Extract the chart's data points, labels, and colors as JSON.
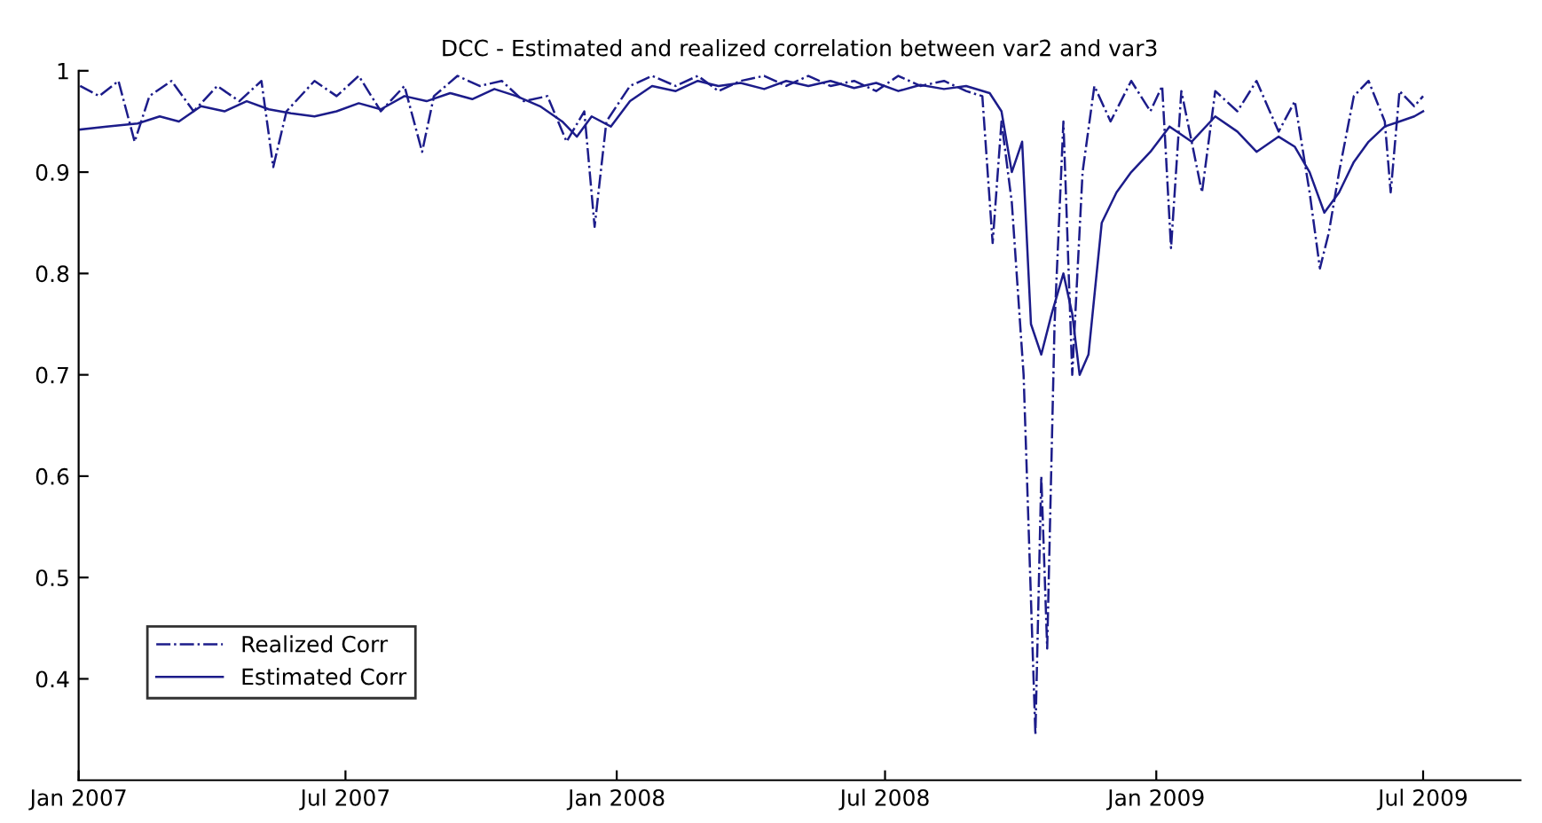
{
  "chart_data": {
    "type": "line",
    "title": "DCC - Estimated and realized correlation between var2 and var3",
    "xlim": [
      "2007-01-01",
      "2009-09-05"
    ],
    "xticks": [
      {
        "value": "2007-01-01",
        "label": "Jan 2007"
      },
      {
        "value": "2007-07-01",
        "label": "Jul 2007"
      },
      {
        "value": "2008-01-01",
        "label": "Jan 2008"
      },
      {
        "value": "2008-07-01",
        "label": "Jul 2008"
      },
      {
        "value": "2009-01-01",
        "label": "Jan 2009"
      },
      {
        "value": "2009-07-01",
        "label": "Jul 2009"
      }
    ],
    "ylim": [
      0.3,
      1
    ],
    "yticks": [
      0.4,
      0.5,
      0.6,
      0.7,
      0.8,
      0.9,
      1
    ],
    "grid": false,
    "legend": "bottom left",
    "marker": "none",
    "series": [
      {
        "name": "Realized Corr",
        "color": "#1c1c8a",
        "line_style": "dashdot",
        "x": [
          "2007-01-02",
          "2007-01-15",
          "2007-01-28",
          "2007-02-08",
          "2007-02-18",
          "2007-03-05",
          "2007-03-20",
          "2007-04-05",
          "2007-04-20",
          "2007-05-05",
          "2007-05-13",
          "2007-05-22",
          "2007-06-10",
          "2007-06-25",
          "2007-07-10",
          "2007-07-25",
          "2007-08-10",
          "2007-08-22",
          "2007-08-30",
          "2007-09-15",
          "2007-09-30",
          "2007-10-15",
          "2007-10-30",
          "2007-11-15",
          "2007-11-28",
          "2007-12-10",
          "2007-12-17",
          "2007-12-25",
          "2008-01-10",
          "2008-01-25",
          "2008-02-10",
          "2008-02-25",
          "2008-03-10",
          "2008-03-25",
          "2008-04-10",
          "2008-04-25",
          "2008-05-10",
          "2008-05-25",
          "2008-06-10",
          "2008-06-25",
          "2008-07-10",
          "2008-07-25",
          "2008-08-10",
          "2008-08-25",
          "2008-09-05",
          "2008-09-12",
          "2008-09-18",
          "2008-09-25",
          "2008-10-03",
          "2008-10-11",
          "2008-10-15",
          "2008-10-19",
          "2008-10-24",
          "2008-10-30",
          "2008-11-05",
          "2008-11-12",
          "2008-11-20",
          "2008-12-01",
          "2008-12-15",
          "2008-12-28",
          "2009-01-05",
          "2009-01-11",
          "2009-01-18",
          "2009-02-01",
          "2009-02-10",
          "2009-02-25",
          "2009-03-10",
          "2009-03-25",
          "2009-04-05",
          "2009-04-15",
          "2009-04-22",
          "2009-04-28",
          "2009-05-05",
          "2009-05-15",
          "2009-05-25",
          "2009-06-05",
          "2009-06-09",
          "2009-06-15",
          "2009-06-25",
          "2009-07-01"
        ],
        "values": [
          0.985,
          0.975,
          0.99,
          0.93,
          0.975,
          0.99,
          0.96,
          0.985,
          0.97,
          0.99,
          0.905,
          0.96,
          0.99,
          0.975,
          0.995,
          0.96,
          0.985,
          0.92,
          0.975,
          0.995,
          0.985,
          0.99,
          0.97,
          0.975,
          0.93,
          0.96,
          0.846,
          0.95,
          0.985,
          0.995,
          0.985,
          0.995,
          0.98,
          0.99,
          0.995,
          0.985,
          0.995,
          0.985,
          0.99,
          0.98,
          0.995,
          0.985,
          0.99,
          0.98,
          0.975,
          0.83,
          0.95,
          0.87,
          0.7,
          0.345,
          0.6,
          0.43,
          0.75,
          0.95,
          0.7,
          0.9,
          0.985,
          0.95,
          0.99,
          0.96,
          0.985,
          0.825,
          0.98,
          0.88,
          0.98,
          0.96,
          0.99,
          0.94,
          0.97,
          0.88,
          0.805,
          0.84,
          0.9,
          0.975,
          0.99,
          0.95,
          0.88,
          0.98,
          0.965,
          0.975
        ]
      },
      {
        "name": "Estimated Corr",
        "color": "#1c1c8a",
        "line_style": "solid",
        "x": [
          "2007-01-02",
          "2007-01-20",
          "2007-02-10",
          "2007-02-25",
          "2007-03-10",
          "2007-03-25",
          "2007-04-10",
          "2007-04-25",
          "2007-05-10",
          "2007-05-25",
          "2007-06-10",
          "2007-06-25",
          "2007-07-10",
          "2007-07-25",
          "2007-08-10",
          "2007-08-25",
          "2007-09-10",
          "2007-09-25",
          "2007-10-10",
          "2007-10-25",
          "2007-11-10",
          "2007-11-25",
          "2007-12-05",
          "2007-12-15",
          "2007-12-28",
          "2008-01-10",
          "2008-01-25",
          "2008-02-10",
          "2008-02-25",
          "2008-03-10",
          "2008-03-25",
          "2008-04-10",
          "2008-04-25",
          "2008-05-10",
          "2008-05-25",
          "2008-06-10",
          "2008-06-25",
          "2008-07-10",
          "2008-07-25",
          "2008-08-10",
          "2008-08-25",
          "2008-09-10",
          "2008-09-18",
          "2008-09-25",
          "2008-10-02",
          "2008-10-08",
          "2008-10-15",
          "2008-10-22",
          "2008-10-30",
          "2008-11-05",
          "2008-11-10",
          "2008-11-16",
          "2008-11-25",
          "2008-12-05",
          "2008-12-15",
          "2008-12-28",
          "2009-01-10",
          "2009-01-25",
          "2009-02-10",
          "2009-02-25",
          "2009-03-10",
          "2009-03-25",
          "2009-04-05",
          "2009-04-15",
          "2009-04-25",
          "2009-05-05",
          "2009-05-15",
          "2009-05-25",
          "2009-06-05",
          "2009-06-15",
          "2009-06-25",
          "2009-07-01"
        ],
        "values": [
          0.942,
          0.945,
          0.948,
          0.955,
          0.95,
          0.965,
          0.96,
          0.97,
          0.962,
          0.958,
          0.955,
          0.96,
          0.968,
          0.962,
          0.975,
          0.97,
          0.978,
          0.972,
          0.982,
          0.975,
          0.965,
          0.95,
          0.935,
          0.955,
          0.945,
          0.97,
          0.985,
          0.98,
          0.99,
          0.985,
          0.988,
          0.982,
          0.99,
          0.985,
          0.99,
          0.983,
          0.988,
          0.98,
          0.986,
          0.982,
          0.985,
          0.978,
          0.96,
          0.9,
          0.93,
          0.75,
          0.72,
          0.76,
          0.8,
          0.76,
          0.7,
          0.72,
          0.85,
          0.88,
          0.9,
          0.92,
          0.945,
          0.93,
          0.955,
          0.94,
          0.92,
          0.935,
          0.925,
          0.9,
          0.86,
          0.88,
          0.91,
          0.93,
          0.945,
          0.95,
          0.955,
          0.96
        ]
      }
    ]
  }
}
